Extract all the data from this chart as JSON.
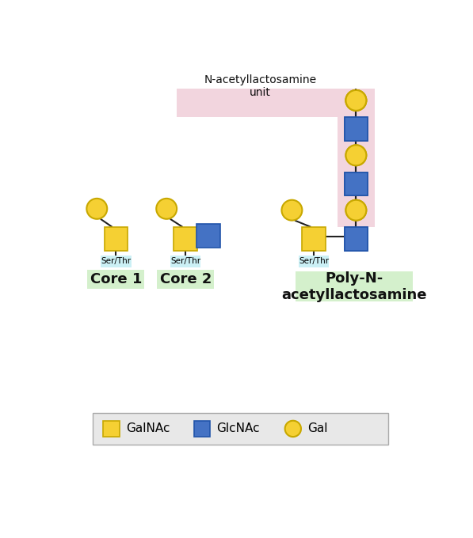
{
  "fig_width": 5.97,
  "fig_height": 6.8,
  "dpi": 100,
  "bg_color": "#ffffff",
  "galnac_color": "#F5D033",
  "galnac_edge": "#C8A800",
  "glcnac_color": "#4472C4",
  "glcnac_edge": "#2255AA",
  "gal_color": "#F5D033",
  "gal_edge_color": "#C8A800",
  "line_color": "#222222",
  "ser_thr_bg": "#CBF0F5",
  "core_label_bg": "#D4F0CC",
  "poly_label_bg": "#D4F0CC",
  "pink_bg": "#F2D5DE",
  "legend_bg": "#E8E8E8",
  "legend_edge": "#AAAAAA",
  "core1_label": "Core 1",
  "core2_label": "Core 2",
  "poly_label": "Poly-N-\nacetyllactosamine",
  "n_acetyl_label": "N-acetyllactosamine\nunit",
  "ser_thr_text": "Ser/Thr",
  "legend_items": [
    "GalNAc",
    "GlcNAc",
    "Gal"
  ]
}
